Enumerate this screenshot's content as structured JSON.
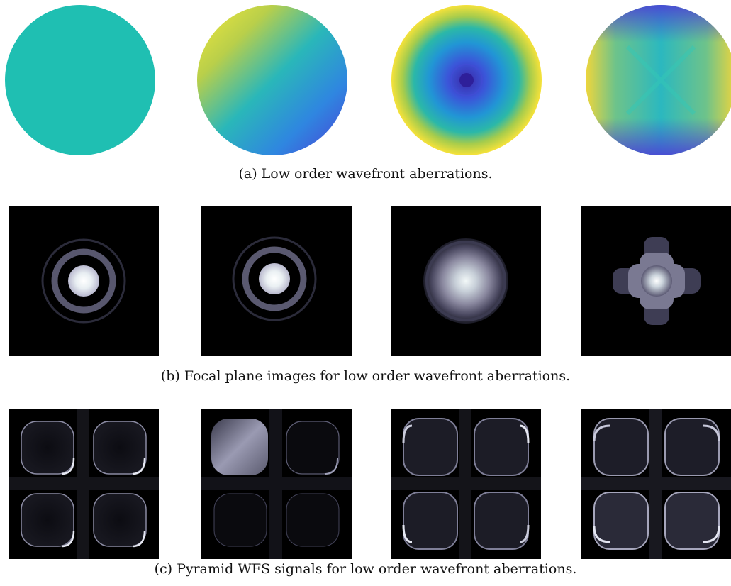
{
  "figure": {
    "rows": [
      {
        "id": "wavefronts",
        "caption": "(a) Low order wavefront aberrations.",
        "panels": [
          {
            "name": "piston-wavefront",
            "colors": [
              "#1fbfb2",
              "#1fbfb2"
            ]
          },
          {
            "name": "tip-tilt-wavefront",
            "colors": [
              "#f3e73a",
              "#2ab7b9",
              "#4b49d9"
            ]
          },
          {
            "name": "defocus-wavefront",
            "colors": [
              "#3a2fb5",
              "#26a9cf",
              "#f2e03a"
            ]
          },
          {
            "name": "astigmatism-wavefront",
            "colors": [
              "#f2d63a",
              "#2bb8bf",
              "#4c3fd6"
            ]
          }
        ]
      },
      {
        "id": "focal-plane",
        "caption": "(b) Focal plane images for low order wavefront aberrations.",
        "panels": [
          {
            "name": "psf-piston"
          },
          {
            "name": "psf-tilt"
          },
          {
            "name": "psf-defocus"
          },
          {
            "name": "psf-astigmatism"
          }
        ]
      },
      {
        "id": "pyramid",
        "caption": "(c) Pyramid WFS signals for low order wavefront aberrations.",
        "panels": [
          {
            "name": "pwfs-piston"
          },
          {
            "name": "pwfs-tilt"
          },
          {
            "name": "pwfs-defocus"
          },
          {
            "name": "pwfs-astigmatism"
          }
        ]
      }
    ]
  }
}
